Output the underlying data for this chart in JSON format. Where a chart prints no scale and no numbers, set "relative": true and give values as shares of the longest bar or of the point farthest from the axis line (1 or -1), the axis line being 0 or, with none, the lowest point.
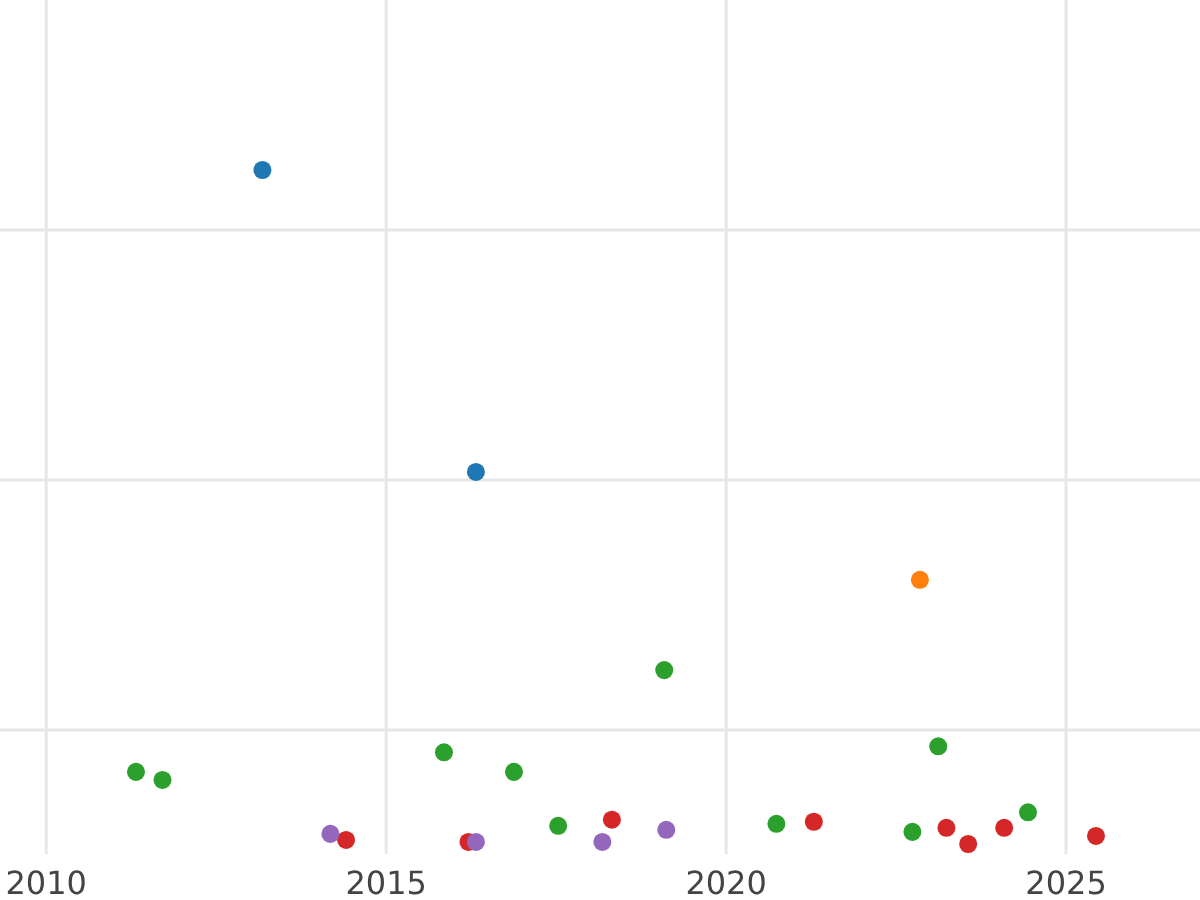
{
  "chart_data": {
    "type": "scatter",
    "relative": true,
    "grid": true,
    "marker": "circle",
    "xlim": [
      2009.32,
      2026.97
    ],
    "xticks": [
      2010,
      2015,
      2020,
      2025
    ],
    "series": [
      {
        "color": "#1f77b4",
        "x": [
          2013.18,
          2016.32
        ],
        "values": [
          1.0,
          0.552
        ]
      },
      {
        "color": "#ff7f0e",
        "x": [
          2022.85
        ],
        "values": [
          0.392
        ]
      },
      {
        "color": "#2ca02c",
        "x": [
          2011.32,
          2011.71,
          2015.85,
          2016.88,
          2017.53,
          2019.09,
          2020.74,
          2022.74,
          2023.12,
          2024.44
        ],
        "values": [
          0.107,
          0.095,
          0.136,
          0.107,
          0.027,
          0.258,
          0.03,
          0.018,
          0.145,
          0.047
        ]
      },
      {
        "color": "#d62728",
        "x": [
          2014.41,
          2016.21,
          2018.32,
          2021.29,
          2023.24,
          2023.56,
          2024.09,
          2025.44
        ],
        "values": [
          0.006,
          0.003,
          0.036,
          0.033,
          0.024,
          0.0,
          0.024,
          0.012
        ]
      },
      {
        "color": "#9467bd",
        "x": [
          2014.18,
          2016.32,
          2018.18,
          2019.12
        ],
        "values": [
          0.015,
          0.003,
          0.003,
          0.021
        ]
      }
    ]
  }
}
